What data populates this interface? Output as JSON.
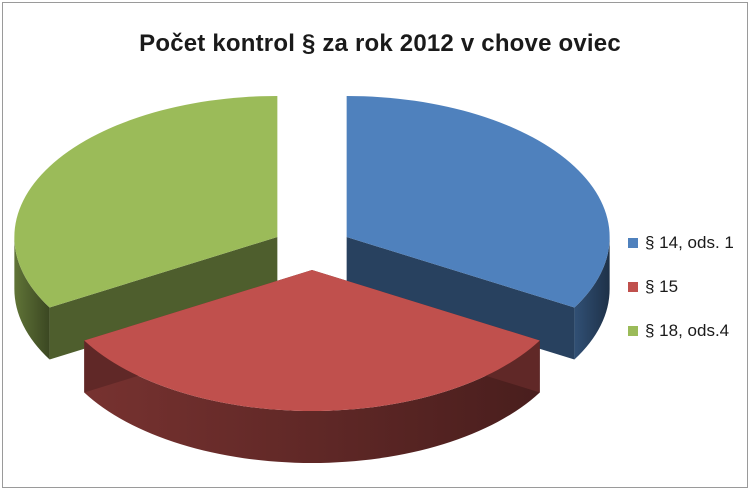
{
  "chart_data": {
    "type": "pie",
    "style": "3d-exploded",
    "title": "Počet kontrol § za rok 2012 v chove oviec",
    "categories": [
      "§ 14, ods. 1",
      "§ 15",
      "§ 18, ods.4"
    ],
    "values": [
      33.3,
      33.3,
      33.3
    ],
    "colors": [
      "#4f81bd",
      "#c0504d",
      "#9bbb59"
    ],
    "legend_position": "right"
  }
}
